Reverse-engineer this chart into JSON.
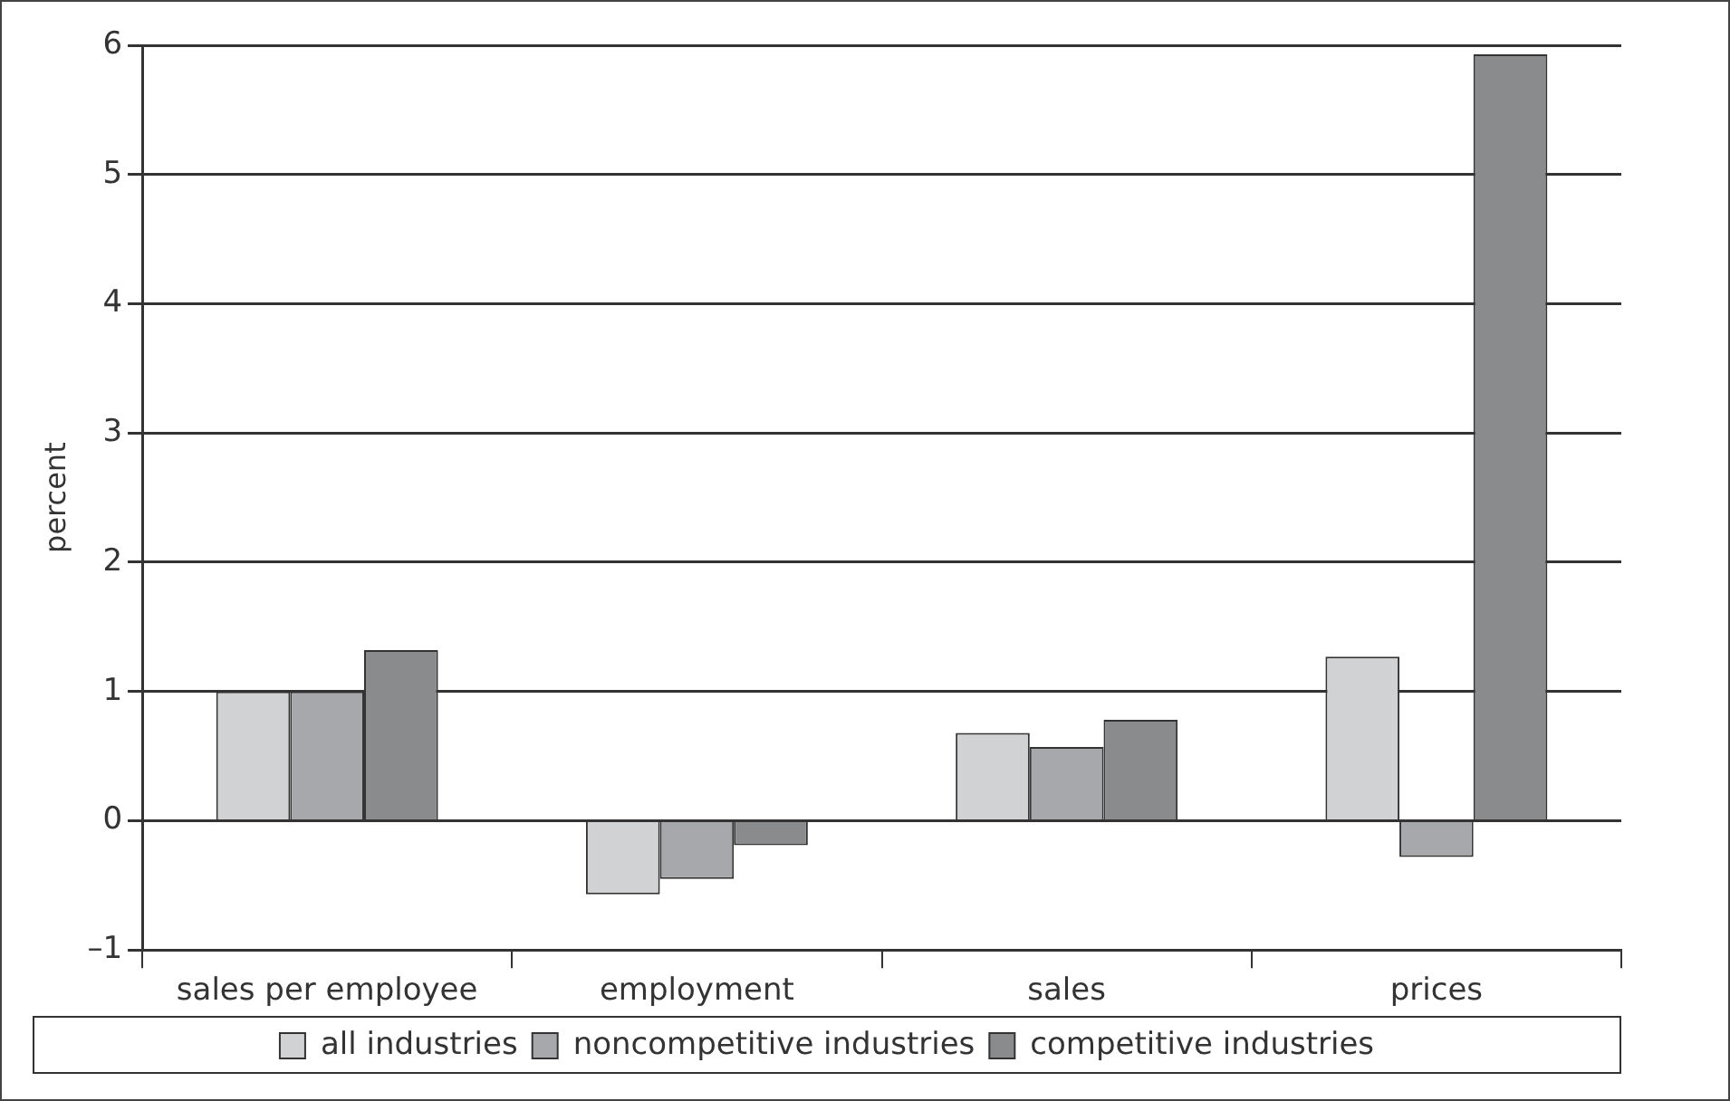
{
  "chart_data": {
    "type": "bar",
    "ylabel": "percent",
    "categories": [
      "sales per employee",
      "employment",
      "sales",
      "prices"
    ],
    "series": [
      {
        "name": "all industries",
        "color": "#d1d2d4",
        "values": [
          1.0,
          -0.57,
          0.68,
          1.27
        ]
      },
      {
        "name": "noncompetitive industries",
        "color": "#a7a8ab",
        "values": [
          1.0,
          -0.45,
          0.57,
          -0.28
        ]
      },
      {
        "name": "competitive industries",
        "color": "#8a8b8d",
        "values": [
          1.32,
          -0.19,
          0.78,
          5.93
        ]
      }
    ],
    "ylim": [
      -1,
      6
    ],
    "yticks": [
      {
        "value": -1,
        "label": "–1"
      },
      0,
      1,
      2,
      3,
      4,
      5,
      6
    ],
    "grid": "y",
    "legend": "bottom"
  }
}
